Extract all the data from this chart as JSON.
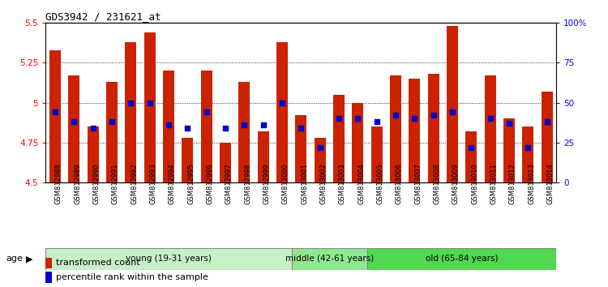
{
  "title": "GDS3942 / 231621_at",
  "samples": [
    "GSM812988",
    "GSM812989",
    "GSM812990",
    "GSM812991",
    "GSM812992",
    "GSM812993",
    "GSM812994",
    "GSM812995",
    "GSM812996",
    "GSM812997",
    "GSM812998",
    "GSM812999",
    "GSM813000",
    "GSM813001",
    "GSM813002",
    "GSM813003",
    "GSM813004",
    "GSM813005",
    "GSM813006",
    "GSM813007",
    "GSM813008",
    "GSM813009",
    "GSM813010",
    "GSM813011",
    "GSM813012",
    "GSM813013",
    "GSM813014"
  ],
  "red_values": [
    5.33,
    5.17,
    4.85,
    5.13,
    5.38,
    5.44,
    5.2,
    4.78,
    5.2,
    4.75,
    5.13,
    4.82,
    5.38,
    4.92,
    4.78,
    5.05,
    5.0,
    4.85,
    5.17,
    5.15,
    5.18,
    5.48,
    4.82,
    5.17,
    4.9,
    4.85,
    5.07
  ],
  "blue_percentile": [
    44,
    38,
    34,
    38,
    50,
    50,
    36,
    34,
    44,
    34,
    36,
    36,
    50,
    34,
    22,
    40,
    40,
    38,
    42,
    40,
    42,
    44,
    22,
    40,
    37,
    22,
    38
  ],
  "ymin": 4.5,
  "ymax": 5.5,
  "yticks": [
    4.5,
    4.75,
    5.0,
    5.25,
    5.5
  ],
  "y2ticks": [
    0,
    25,
    50,
    75,
    100
  ],
  "y2labels": [
    "0",
    "25",
    "50",
    "75",
    "100%"
  ],
  "groups": [
    {
      "label": "young (19-31 years)",
      "start": 0,
      "end": 13,
      "color": "#c8f0c8"
    },
    {
      "label": "middle (42-61 years)",
      "start": 13,
      "end": 17,
      "color": "#90e890"
    },
    {
      "label": "old (65-84 years)",
      "start": 17,
      "end": 27,
      "color": "#50d850"
    }
  ],
  "age_label": "age",
  "legend_red": "transformed count",
  "legend_blue": "percentile rank within the sample",
  "bar_color": "#cc2200",
  "blue_color": "#0000cc",
  "tick_bg": "#d8d8d8"
}
